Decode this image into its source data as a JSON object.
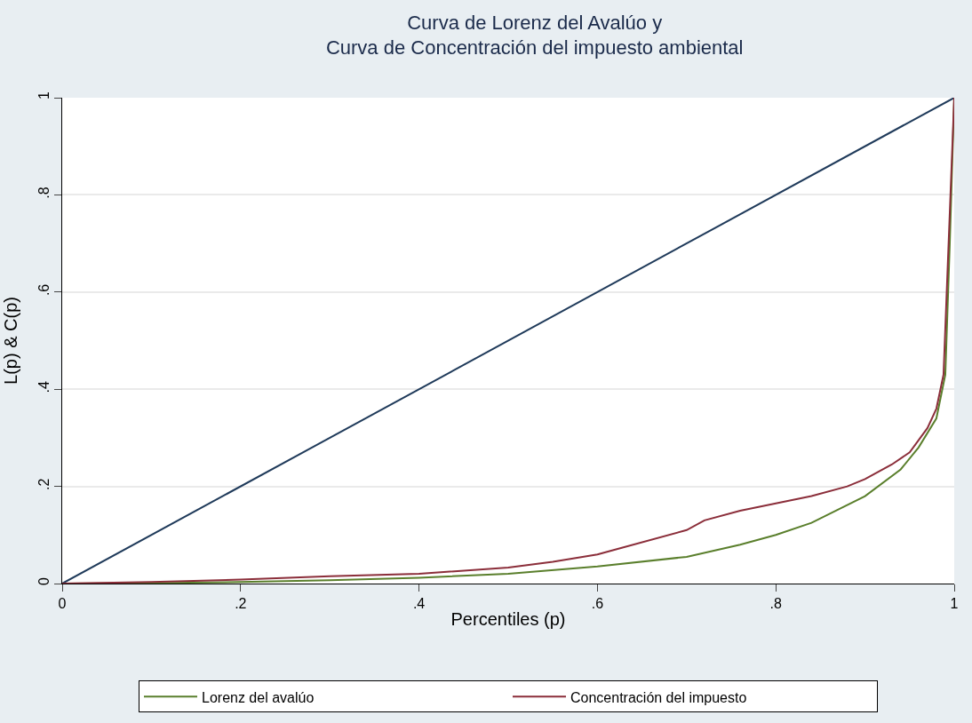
{
  "chart_data": {
    "type": "line",
    "title": "Curva de Lorenz del Avalúo y\nCurva de Concentración del impuesto ambiental",
    "xlabel": "Percentiles (p)",
    "ylabel": "L(p) & C(p)",
    "xlim": [
      0,
      1
    ],
    "ylim": [
      0,
      1
    ],
    "xticks": [
      0,
      {
        "value": 0.2,
        "label": ".2"
      },
      {
        "value": 0.4,
        "label": ".4"
      },
      {
        "value": 0.6,
        "label": ".6"
      },
      {
        "value": 0.8,
        "label": ".8"
      },
      1
    ],
    "yticks": [
      0,
      {
        "value": 0.2,
        "label": ".2"
      },
      {
        "value": 0.4,
        "label": ".4"
      },
      {
        "value": 0.6,
        "label": ".6"
      },
      {
        "value": 0.8,
        "label": ".8"
      },
      1
    ],
    "grid": "y",
    "legend": "bottom",
    "line_style": "solid",
    "series": [
      {
        "color": "#1f3a5a",
        "x": [
          0,
          1
        ],
        "values": [
          0,
          1
        ]
      },
      {
        "name": "Lorenz del avalúo",
        "color": "#5a7f2c",
        "x": [
          0,
          0.1,
          0.2,
          0.3,
          0.4,
          0.5,
          0.6,
          0.7,
          0.76,
          0.8,
          0.84,
          0.9,
          0.94,
          0.96,
          0.98,
          0.99,
          0.995,
          1
        ],
        "values": [
          0,
          0.001,
          0.003,
          0.007,
          0.012,
          0.02,
          0.035,
          0.055,
          0.08,
          0.1,
          0.125,
          0.18,
          0.235,
          0.28,
          0.34,
          0.43,
          0.7,
          1
        ]
      },
      {
        "name": "Concentración del impuesto",
        "color": "#8b2e3a",
        "x": [
          0,
          0.1,
          0.2,
          0.3,
          0.4,
          0.5,
          0.55,
          0.6,
          0.62,
          0.7,
          0.72,
          0.76,
          0.8,
          0.84,
          0.88,
          0.9,
          0.93,
          0.95,
          0.97,
          0.98,
          0.988,
          1
        ],
        "values": [
          0,
          0.003,
          0.008,
          0.015,
          0.02,
          0.033,
          0.045,
          0.06,
          0.07,
          0.11,
          0.13,
          0.15,
          0.165,
          0.18,
          0.2,
          0.215,
          0.245,
          0.27,
          0.32,
          0.36,
          0.43,
          1
        ]
      }
    ]
  }
}
